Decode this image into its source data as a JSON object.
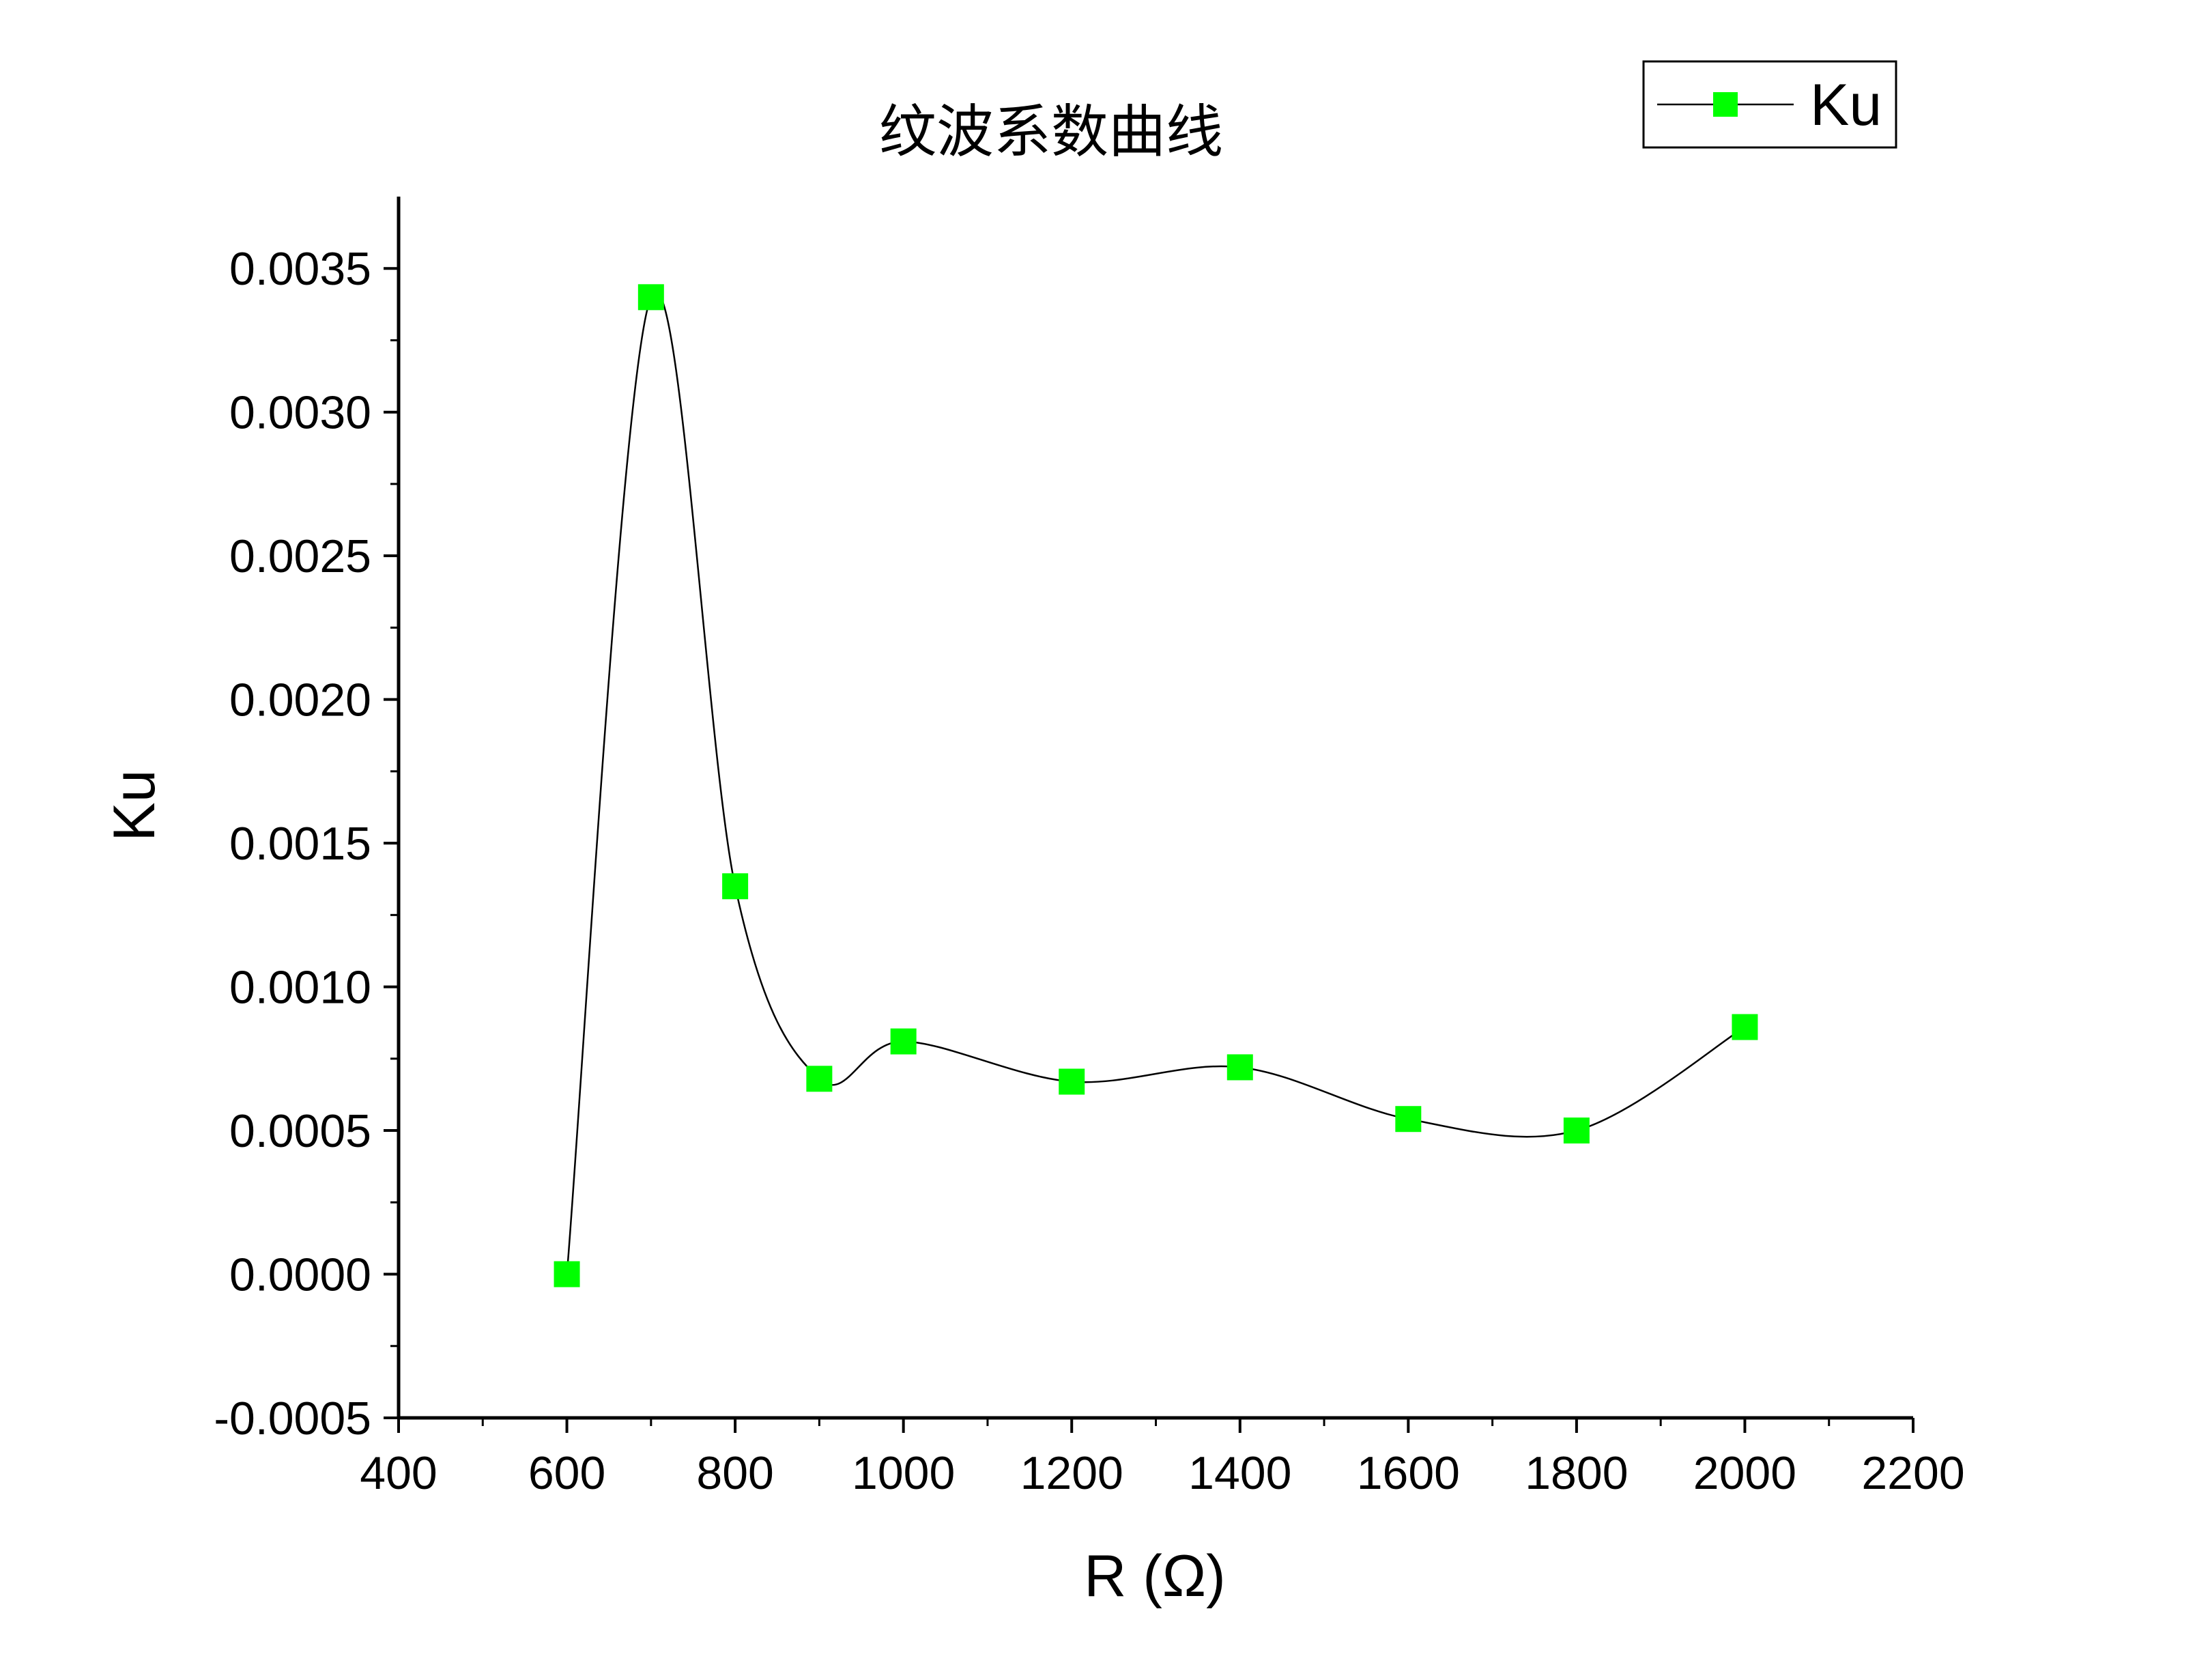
{
  "chart_data": {
    "type": "line",
    "title": "纹波系数曲线",
    "xlabel": "R (Ω)",
    "ylabel": "Ku",
    "xlim": [
      400,
      2200
    ],
    "ylim": [
      -0.0005,
      0.00375
    ],
    "x_ticks": [
      400,
      600,
      800,
      1000,
      1200,
      1400,
      1600,
      1800,
      2000,
      2200
    ],
    "x_tick_labels": [
      "400",
      "600",
      "800",
      "1000",
      "1200",
      "1400",
      "1600",
      "1800",
      "2000",
      "2200"
    ],
    "y_ticks": [
      -0.0005,
      0.0,
      0.0005,
      0.001,
      0.0015,
      0.002,
      0.0025,
      0.003,
      0.0035
    ],
    "y_tick_labels": [
      "-0.0005",
      "0.0000",
      "0.0005",
      "0.0010",
      "0.0015",
      "0.0020",
      "0.0025",
      "0.0030",
      "0.0035"
    ],
    "grid": false,
    "legend_position": "top-right",
    "series": [
      {
        "name": "Ku",
        "color": "#00ff00",
        "line_color": "#000000",
        "marker": "square",
        "smooth": true,
        "x": [
          600,
          700,
          800,
          900,
          1000,
          1200,
          1400,
          1600,
          1800,
          2000
        ],
        "y": [
          0.0,
          0.0034,
          0.00135,
          0.00068,
          0.00081,
          0.00067,
          0.00072,
          0.00054,
          0.0005,
          0.00086
        ]
      }
    ]
  }
}
